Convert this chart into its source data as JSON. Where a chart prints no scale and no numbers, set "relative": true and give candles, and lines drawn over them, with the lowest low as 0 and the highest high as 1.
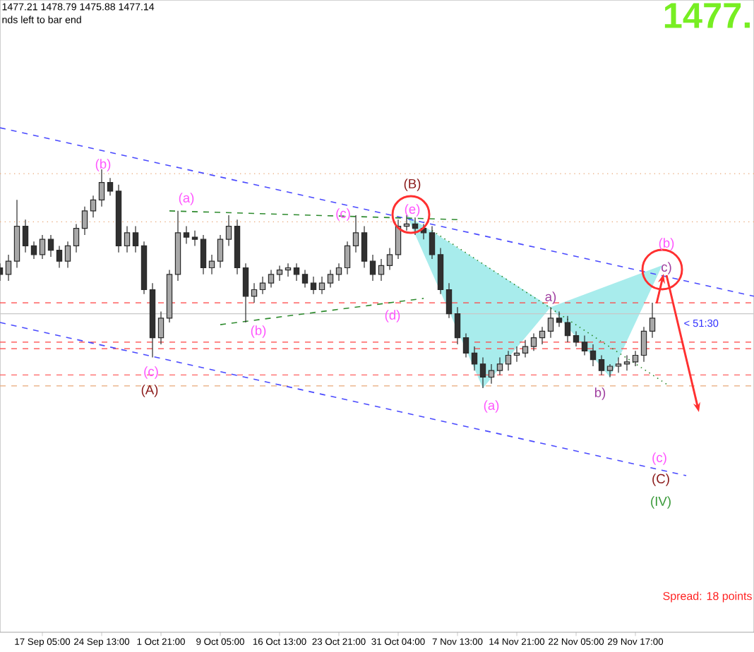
{
  "chart_data": {
    "type": "candlestick",
    "relative": true,
    "categories": [
      null,
      null,
      null,
      null,
      null,
      "17 Sep 05:00",
      null,
      null,
      null,
      null,
      null,
      null,
      "24 Sep 13:00",
      null,
      null,
      null,
      null,
      null,
      null,
      "1 Oct 21:00",
      null,
      null,
      null,
      null,
      null,
      null,
      "9 Oct 05:00",
      null,
      null,
      null,
      null,
      null,
      null,
      "16 Oct 13:00",
      null,
      null,
      null,
      null,
      null,
      null,
      "23 Oct 21:00",
      null,
      null,
      null,
      null,
      null,
      null,
      "31 Oct 04:00",
      null,
      null,
      null,
      null,
      null,
      null,
      "7 Nov 13:00",
      null,
      null,
      null,
      null,
      null,
      null,
      "14 Nov 21:00",
      null,
      null,
      null,
      null,
      null,
      null,
      "22 Nov 05:00",
      null,
      null,
      null,
      null,
      null,
      null,
      "29 Nov 17:00",
      null,
      null,
      null,
      null,
      null,
      null,
      null,
      null,
      null,
      null,
      null,
      null,
      null,
      null
    ],
    "ohlc": [
      [
        0.55,
        0.57,
        0.49,
        0.52
      ],
      [
        0.52,
        0.61,
        0.49,
        0.58
      ],
      [
        0.58,
        0.86,
        0.55,
        0.74
      ],
      [
        0.74,
        0.77,
        0.62,
        0.65
      ],
      [
        0.65,
        0.67,
        0.59,
        0.61
      ],
      [
        0.61,
        0.7,
        0.59,
        0.68
      ],
      [
        0.68,
        0.7,
        0.6,
        0.63
      ],
      [
        0.63,
        0.65,
        0.55,
        0.58
      ],
      [
        0.58,
        0.67,
        0.55,
        0.65
      ],
      [
        0.65,
        0.75,
        0.62,
        0.73
      ],
      [
        0.73,
        0.83,
        0.7,
        0.81
      ],
      [
        0.81,
        0.88,
        0.78,
        0.86
      ],
      [
        0.86,
        1.0,
        0.83,
        0.94
      ],
      [
        0.94,
        0.96,
        0.88,
        0.9
      ],
      [
        0.9,
        0.93,
        0.62,
        0.65
      ],
      [
        0.65,
        0.74,
        0.62,
        0.71
      ],
      [
        0.71,
        0.74,
        0.62,
        0.65
      ],
      [
        0.65,
        0.67,
        0.43,
        0.45
      ],
      [
        0.45,
        0.48,
        0.14,
        0.23
      ],
      [
        0.23,
        0.35,
        0.2,
        0.32
      ],
      [
        0.32,
        0.54,
        0.3,
        0.52
      ],
      [
        0.52,
        0.81,
        0.49,
        0.71
      ],
      [
        0.71,
        0.74,
        0.66,
        0.69
      ],
      [
        0.69,
        0.72,
        0.65,
        0.68
      ],
      [
        0.68,
        0.7,
        0.52,
        0.55
      ],
      [
        0.55,
        0.61,
        0.52,
        0.58
      ],
      [
        0.58,
        0.7,
        0.55,
        0.68
      ],
      [
        0.68,
        0.79,
        0.65,
        0.74
      ],
      [
        0.74,
        0.77,
        0.52,
        0.55
      ],
      [
        0.55,
        0.57,
        0.3,
        0.42
      ],
      [
        0.42,
        0.48,
        0.39,
        0.45
      ],
      [
        0.45,
        0.51,
        0.43,
        0.48
      ],
      [
        0.48,
        0.54,
        0.46,
        0.52
      ],
      [
        0.52,
        0.56,
        0.49,
        0.54
      ],
      [
        0.54,
        0.57,
        0.51,
        0.55
      ],
      [
        0.55,
        0.57,
        0.49,
        0.52
      ],
      [
        0.52,
        0.54,
        0.46,
        0.48
      ],
      [
        0.48,
        0.51,
        0.43,
        0.45
      ],
      [
        0.45,
        0.51,
        0.43,
        0.48
      ],
      [
        0.48,
        0.54,
        0.46,
        0.52
      ],
      [
        0.52,
        0.57,
        0.49,
        0.55
      ],
      [
        0.55,
        0.67,
        0.52,
        0.65
      ],
      [
        0.65,
        0.79,
        0.62,
        0.71
      ],
      [
        0.71,
        0.74,
        0.55,
        0.58
      ],
      [
        0.58,
        0.61,
        0.49,
        0.52
      ],
      [
        0.52,
        0.59,
        0.49,
        0.56
      ],
      [
        0.56,
        0.64,
        0.54,
        0.61
      ],
      [
        0.61,
        0.77,
        0.59,
        0.74
      ],
      [
        0.74,
        0.79,
        0.72,
        0.75
      ],
      [
        0.75,
        0.78,
        0.7,
        0.73
      ],
      [
        0.73,
        0.75,
        0.68,
        0.71
      ],
      [
        0.71,
        0.74,
        0.59,
        0.61
      ],
      [
        0.61,
        0.64,
        0.43,
        0.45
      ],
      [
        0.45,
        0.48,
        0.32,
        0.34
      ],
      [
        0.34,
        0.37,
        0.2,
        0.23
      ],
      [
        0.23,
        0.25,
        0.14,
        0.16
      ],
      [
        0.16,
        0.19,
        0.08,
        0.11
      ],
      [
        0.11,
        0.14,
        0.0,
        0.05
      ],
      [
        0.05,
        0.11,
        0.02,
        0.08
      ],
      [
        0.08,
        0.14,
        0.06,
        0.11
      ],
      [
        0.11,
        0.17,
        0.08,
        0.15
      ],
      [
        0.15,
        0.19,
        0.12,
        0.16
      ],
      [
        0.16,
        0.22,
        0.14,
        0.19
      ],
      [
        0.19,
        0.25,
        0.17,
        0.23
      ],
      [
        0.23,
        0.28,
        0.2,
        0.26
      ],
      [
        0.26,
        0.37,
        0.23,
        0.32
      ],
      [
        0.32,
        0.35,
        0.28,
        0.3
      ],
      [
        0.3,
        0.33,
        0.21,
        0.24
      ],
      [
        0.24,
        0.26,
        0.19,
        0.21
      ],
      [
        0.21,
        0.24,
        0.15,
        0.17
      ],
      [
        0.17,
        0.2,
        0.1,
        0.13
      ],
      [
        0.13,
        0.15,
        0.06,
        0.08
      ],
      [
        0.08,
        0.11,
        0.05,
        0.1
      ],
      [
        0.1,
        0.14,
        0.07,
        0.11
      ],
      [
        0.11,
        0.15,
        0.08,
        0.12
      ],
      [
        0.12,
        0.17,
        0.1,
        0.15
      ],
      [
        0.15,
        0.28,
        0.12,
        0.26
      ],
      [
        0.26,
        0.39,
        0.23,
        0.32
      ],
      null,
      null,
      null,
      null,
      null,
      null,
      null,
      null,
      null,
      null,
      null,
      null
    ],
    "series": [
      {
        "type": "line",
        "color": "#4a4aff",
        "line_style": "dashed",
        "values": [
          1.19,
          null,
          null,
          null,
          null,
          null,
          null,
          null,
          null,
          null,
          null,
          null,
          null,
          null,
          null,
          null,
          null,
          null,
          null,
          null,
          null,
          null,
          null,
          null,
          null,
          null,
          null,
          null,
          null,
          null,
          null,
          null,
          null,
          null,
          null,
          null,
          null,
          null,
          null,
          null,
          null,
          null,
          null,
          null,
          null,
          null,
          null,
          null,
          null,
          null,
          null,
          null,
          null,
          null,
          null,
          null,
          null,
          null,
          null,
          null,
          null,
          null,
          null,
          null,
          null,
          null,
          null,
          null,
          null,
          null,
          null,
          null,
          null,
          null,
          null,
          null,
          null,
          null,
          null,
          null,
          null,
          null,
          null,
          null,
          null,
          null,
          null,
          null,
          null,
          0.42
        ]
      },
      {
        "type": "line",
        "color": "#4a4aff",
        "line_style": "dashed",
        "values": [
          0.3,
          null,
          null,
          null,
          null,
          null,
          null,
          null,
          null,
          null,
          null,
          null,
          null,
          null,
          null,
          null,
          null,
          null,
          null,
          null,
          null,
          null,
          null,
          null,
          null,
          null,
          null,
          null,
          null,
          null,
          null,
          null,
          null,
          null,
          null,
          null,
          null,
          null,
          null,
          null,
          null,
          null,
          null,
          null,
          null,
          null,
          null,
          null,
          null,
          null,
          null,
          null,
          null,
          null,
          null,
          null,
          null,
          null,
          null,
          null,
          null,
          null,
          null,
          null,
          null,
          null,
          null,
          null,
          null,
          null,
          null,
          null,
          null,
          null,
          null,
          null,
          null,
          null,
          null,
          null,
          null,
          -0.4,
          null,
          null,
          null,
          null,
          null,
          null,
          null,
          null
        ]
      },
      {
        "type": "line",
        "color": "#2e8b2e",
        "line_style": "dashed",
        "values": [
          null,
          null,
          null,
          null,
          null,
          null,
          null,
          null,
          null,
          null,
          null,
          null,
          null,
          null,
          null,
          null,
          null,
          null,
          null,
          null,
          0.81,
          null,
          null,
          null,
          null,
          null,
          null,
          null,
          null,
          null,
          null,
          null,
          null,
          null,
          null,
          null,
          null,
          null,
          null,
          null,
          null,
          null,
          null,
          null,
          null,
          null,
          null,
          null,
          null,
          null,
          null,
          null,
          null,
          null,
          0.77,
          null,
          null,
          null,
          null,
          null,
          null,
          null,
          null,
          null,
          null,
          null,
          null,
          null,
          null,
          null,
          null,
          null,
          null,
          null,
          null,
          null,
          null,
          null,
          null,
          null,
          null,
          null,
          null,
          null,
          null,
          null,
          null,
          null,
          null,
          null
        ]
      },
      {
        "type": "line",
        "color": "#2e8b2e",
        "line_style": "dashed",
        "values": [
          null,
          null,
          null,
          null,
          null,
          null,
          null,
          null,
          null,
          null,
          null,
          null,
          null,
          null,
          null,
          null,
          null,
          null,
          null,
          null,
          null,
          null,
          null,
          null,
          null,
          null,
          0.29,
          null,
          null,
          null,
          null,
          null,
          null,
          null,
          null,
          null,
          null,
          null,
          null,
          null,
          null,
          null,
          null,
          null,
          null,
          null,
          null,
          null,
          null,
          null,
          0.41,
          null,
          null,
          null,
          null,
          null,
          null,
          null,
          null,
          null,
          null,
          null,
          null,
          null,
          null,
          null,
          null,
          null,
          null,
          null,
          null,
          null,
          null,
          null,
          null,
          null,
          null,
          null,
          null,
          null,
          null,
          null,
          null,
          null,
          null,
          null,
          null,
          null,
          null,
          null
        ]
      },
      {
        "type": "line",
        "color": "#2e8b2e",
        "line_style": "dotted",
        "values": [
          null,
          null,
          null,
          null,
          null,
          null,
          null,
          null,
          null,
          null,
          null,
          null,
          null,
          null,
          null,
          null,
          null,
          null,
          null,
          null,
          null,
          null,
          null,
          null,
          null,
          null,
          null,
          null,
          null,
          null,
          null,
          null,
          null,
          null,
          null,
          null,
          null,
          null,
          null,
          null,
          null,
          null,
          null,
          null,
          null,
          null,
          null,
          null,
          null,
          null,
          null,
          0.72,
          null,
          null,
          null,
          null,
          null,
          null,
          null,
          null,
          null,
          null,
          null,
          null,
          null,
          null,
          null,
          null,
          null,
          null,
          null,
          null,
          null,
          null,
          null,
          null,
          null,
          null,
          null,
          0.01,
          null,
          null,
          null,
          null,
          null,
          null,
          null,
          null,
          null,
          null
        ]
      }
    ],
    "ref_lines": [
      {
        "axis": "y",
        "value": 0.98,
        "color": "#e8a878",
        "line_style": "dotted"
      },
      {
        "axis": "y",
        "value": 0.76,
        "color": "#e8a878",
        "line_style": "dotted"
      },
      {
        "axis": "y",
        "value": 0.39,
        "color": "#ff4040",
        "line_style": "dashed"
      },
      {
        "axis": "y",
        "value": 0.34,
        "color": "#c8c8c8",
        "line_style": "solid"
      },
      {
        "axis": "y",
        "value": 0.21,
        "color": "#ff4040",
        "line_style": "dashed"
      },
      {
        "axis": "y",
        "value": 0.18,
        "color": "#ff4040",
        "line_style": "dashed"
      },
      {
        "axis": "y",
        "value": 0.06,
        "color": "#ff6060",
        "line_style": "dashed"
      },
      {
        "axis": "y",
        "value": 0.01,
        "color": "#e8a878",
        "line_style": "dashed"
      }
    ],
    "annotations": [
      "(b)",
      "(a)",
      "(c)",
      "(B)",
      "(e)",
      "(b)",
      "(d)",
      "(c)",
      "(A)",
      "(a)",
      "a)",
      "b)",
      "(b)",
      "c)",
      "(c)",
      "(C)",
      "(IV)",
      "< 51:30",
      "1477.21 1478.79 1475.88 1477.14",
      "nds left to bar end",
      "1477.",
      "Spread: 18 points"
    ]
  }
}
